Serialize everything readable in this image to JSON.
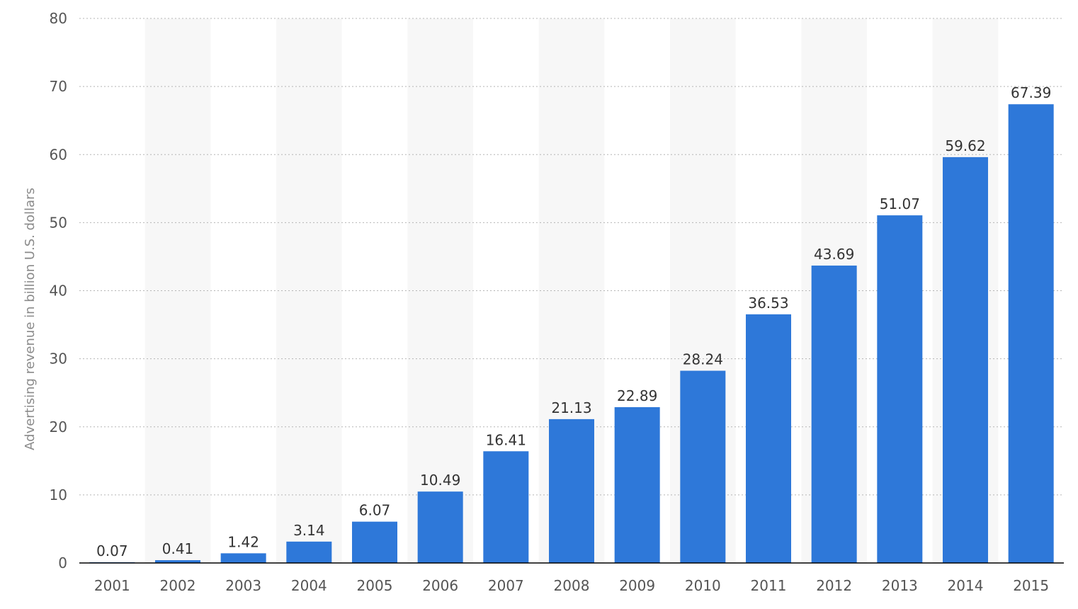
{
  "chart_data": {
    "type": "bar",
    "categories": [
      "2001",
      "2002",
      "2003",
      "2004",
      "2005",
      "2006",
      "2007",
      "2008",
      "2009",
      "2010",
      "2011",
      "2012",
      "2013",
      "2014",
      "2015"
    ],
    "values": [
      0.07,
      0.41,
      1.42,
      3.14,
      6.07,
      10.49,
      16.41,
      21.13,
      22.89,
      28.24,
      36.53,
      43.69,
      51.07,
      59.62,
      67.39
    ],
    "value_labels": [
      "0.07",
      "0.41",
      "1.42",
      "3.14",
      "6.07",
      "10.49",
      "16.41",
      "21.13",
      "22.89",
      "28.24",
      "36.53",
      "43.69",
      "51.07",
      "59.62",
      "67.39"
    ],
    "title": "",
    "xlabel": "",
    "ylabel": "Advertising revenue in billion U.S. dollars",
    "ylim": [
      0,
      80
    ],
    "yticks": [
      "0",
      "10",
      "20",
      "30",
      "40",
      "50",
      "60",
      "70",
      "80"
    ],
    "grid": "horizontal dotted",
    "alternating_column_shading": true,
    "legend": "none",
    "colors": {
      "bar": "#2e78d9",
      "grid": "#b5b5b5",
      "shade": "#f7f7f7",
      "axis": "#000000",
      "tick_text": "#555555",
      "label_text": "#333333",
      "axis_title": "#8a8a8a"
    }
  }
}
